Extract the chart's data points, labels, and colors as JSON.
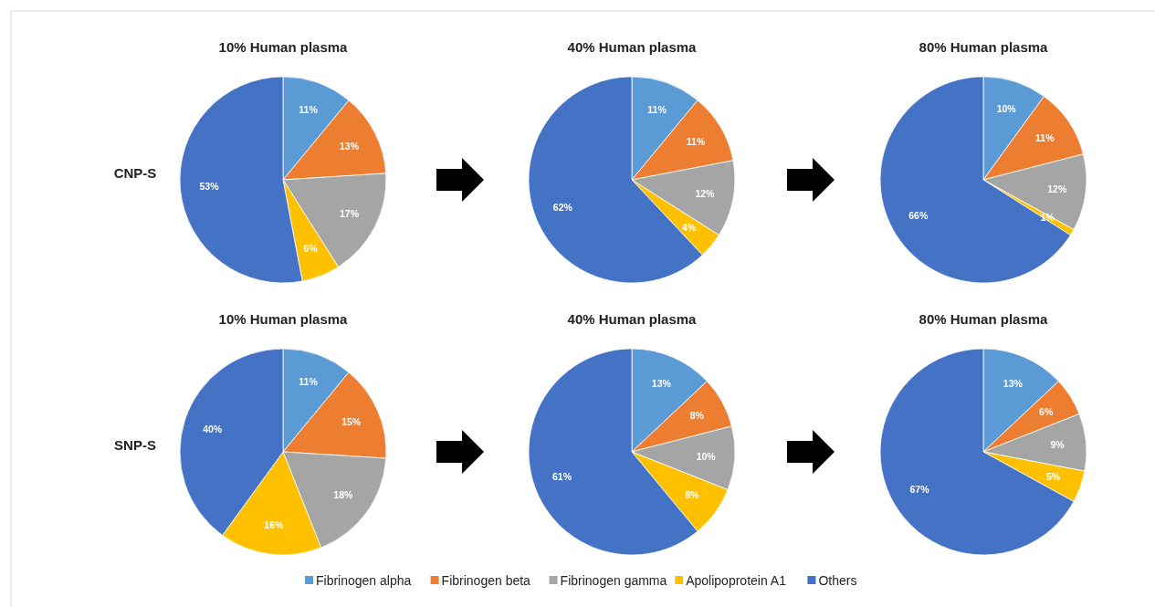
{
  "chart_data": [
    {
      "type": "pie",
      "title": "10% Human plasma",
      "categories": [
        "Fibrinogen alpha",
        "Fibrinogen beta",
        "Fibrinogen gamma",
        "Apolipoprotein A1",
        "Others"
      ],
      "values": [
        11,
        13,
        17,
        6,
        53
      ],
      "value_labels": [
        "11%",
        "13%",
        "17%",
        "6%",
        "53%"
      ],
      "colors": [
        "#5b9bd5",
        "#ed7d31",
        "#a5a5a5",
        "#ffc000",
        "#4472c4"
      ],
      "legend": "bottom",
      "annotations": [
        "CNP-S"
      ]
    },
    {
      "type": "pie",
      "title": "40% Human plasma",
      "categories": [
        null,
        null,
        null,
        null,
        null
      ],
      "values": [
        11,
        11,
        12,
        4,
        62
      ],
      "value_labels": [
        "11%",
        "11%",
        "12%",
        "4%",
        "62%"
      ],
      "colors": [
        "#5b9bd5",
        "#ed7d31",
        "#a5a5a5",
        "#ffc000",
        "#4472c4"
      ]
    },
    {
      "type": "pie",
      "title": "80% Human plasma",
      "categories": [
        null,
        null,
        null,
        null,
        null
      ],
      "values": [
        10,
        11,
        12,
        1,
        66
      ],
      "value_labels": [
        "10%",
        "11%",
        "12%",
        "1%",
        "66%"
      ],
      "colors": [
        "#5b9bd5",
        "#ed7d31",
        "#a5a5a5",
        "#ffc000",
        "#4472c4"
      ]
    },
    {
      "type": "pie",
      "title": "10% Human plasma",
      "categories": [
        null,
        null,
        null,
        null,
        null
      ],
      "values": [
        11,
        15,
        18,
        16,
        40
      ],
      "value_labels": [
        "11%",
        "15%",
        "18%",
        "16%",
        "40%"
      ],
      "colors": [
        "#5b9bd5",
        "#ed7d31",
        "#a5a5a5",
        "#ffc000",
        "#4472c4"
      ],
      "annotations": [
        "SNP-S"
      ]
    },
    {
      "type": "pie",
      "title": "40% Human plasma",
      "categories": [
        null,
        null,
        null,
        null,
        null
      ],
      "values": [
        13,
        8,
        10,
        8,
        61
      ],
      "value_labels": [
        "13%",
        "8%",
        "10%",
        "8%",
        "61%"
      ],
      "colors": [
        "#5b9bd5",
        "#ed7d31",
        "#a5a5a5",
        "#ffc000",
        "#4472c4"
      ]
    },
    {
      "type": "pie",
      "title": "80% Human plasma",
      "categories": [
        null,
        null,
        null,
        null,
        null
      ],
      "values": [
        13,
        6,
        9,
        5,
        67
      ],
      "value_labels": [
        "13%",
        "6%",
        "9%",
        "5%",
        "67%"
      ],
      "colors": [
        "#5b9bd5",
        "#ed7d31",
        "#a5a5a5",
        "#ffc000",
        "#4472c4"
      ]
    }
  ]
}
